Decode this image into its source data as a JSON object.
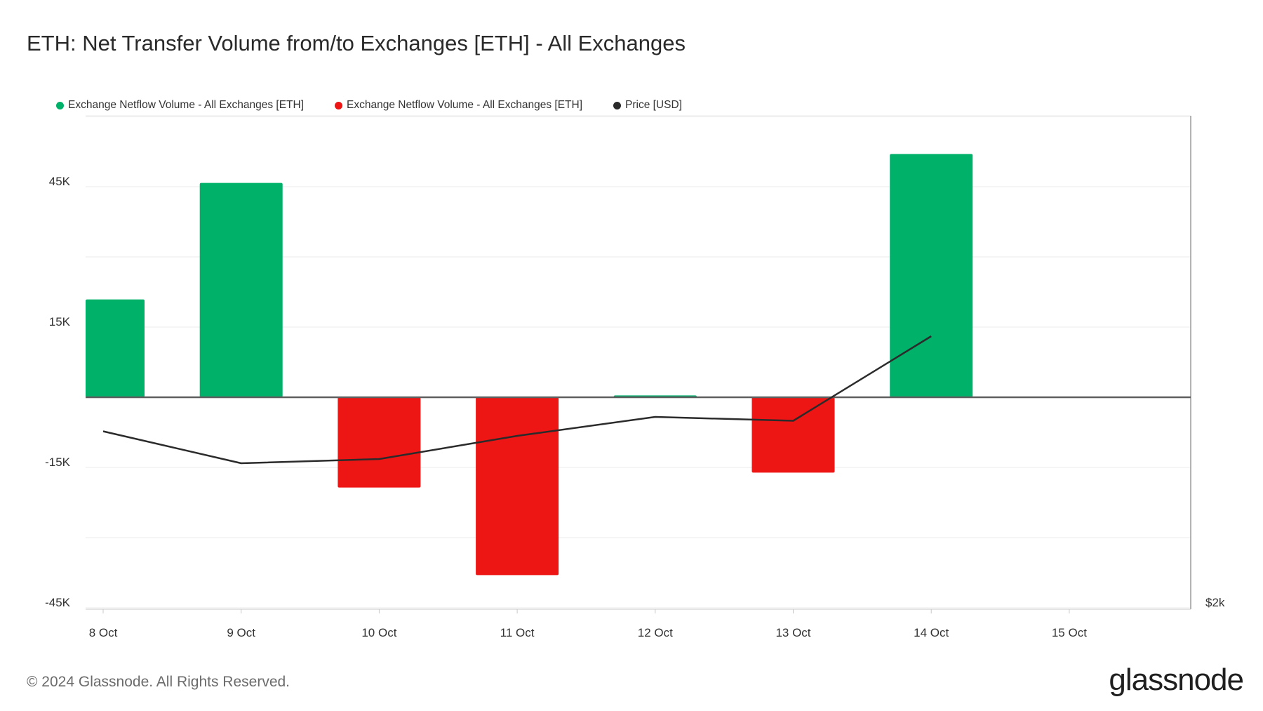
{
  "title": "ETH: Net Transfer Volume from/to Exchanges [ETH] - All Exchanges",
  "footer": "© 2024 Glassnode. All Rights Reserved.",
  "logo_text": "glassnode",
  "colors": {
    "positive": "#00b16a",
    "negative": "#ee1515",
    "price": "#2b2b2b",
    "grid": "#ebebeb",
    "axis": "#c8c8c8",
    "zero_line": "#5f5f5f"
  },
  "legend": [
    {
      "label": "Exchange Netflow Volume - All Exchanges [ETH]",
      "color": "#00b16a"
    },
    {
      "label": "Exchange Netflow Volume - All Exchanges [ETH]",
      "color": "#ee1515"
    },
    {
      "label": "Price [USD]",
      "color": "#2b2b2b"
    }
  ],
  "chart_data": {
    "type": "bar",
    "categories": [
      "8 Oct",
      "9 Oct",
      "10 Oct",
      "11 Oct",
      "12 Oct",
      "13 Oct",
      "14 Oct",
      "15 Oct"
    ],
    "series": [
      {
        "name": "Exchange Netflow Volume - All Exchanges [ETH]",
        "values": [
          20900,
          45800,
          -19300,
          -38000,
          400,
          -16100,
          52000,
          null
        ]
      },
      {
        "name": "Price [USD]",
        "type": "line",
        "values": [
          2455,
          2364,
          2376,
          2442,
          2496,
          2485,
          2726,
          null
        ]
      }
    ],
    "y_left_ticks": [
      "45K",
      "15K",
      "-15K",
      "-45K"
    ],
    "y_left_range": [
      -45000,
      60000
    ],
    "y_right_tick": "$2k",
    "grid": true,
    "legend_position": "top-left"
  }
}
